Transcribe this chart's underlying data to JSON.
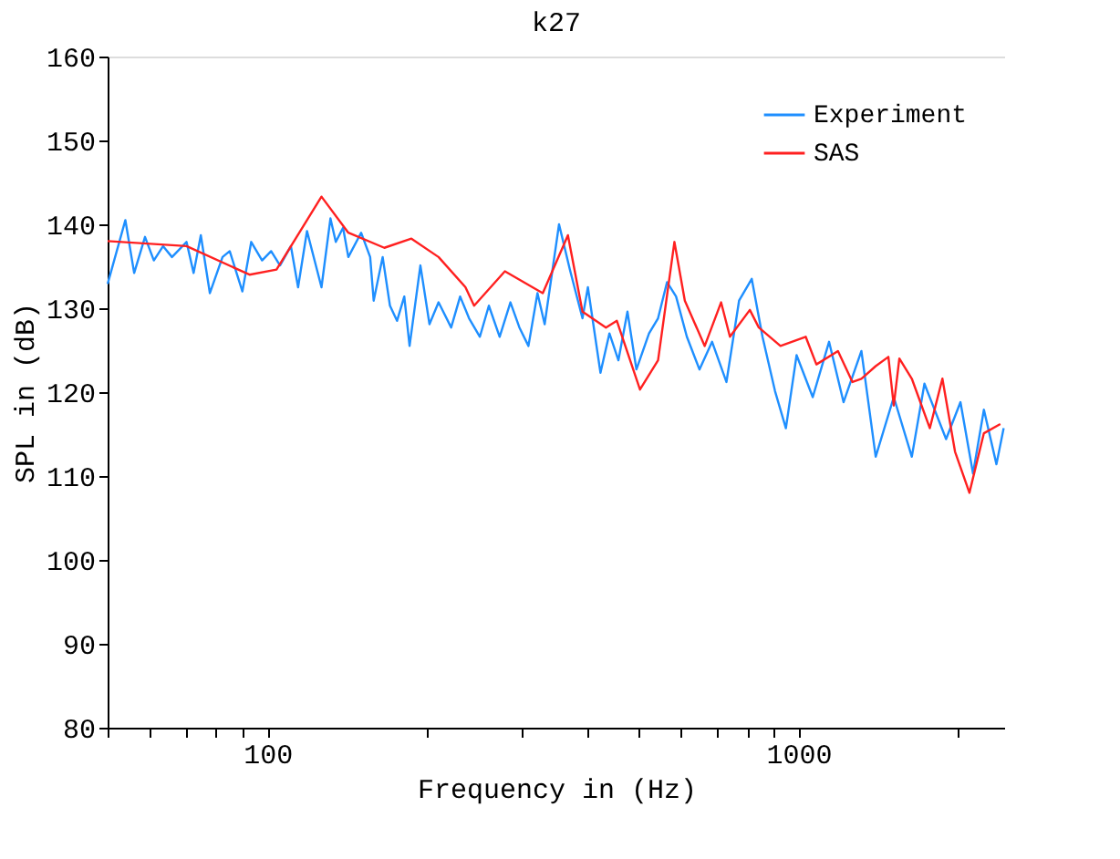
{
  "chart_data": {
    "type": "line",
    "title": "k27",
    "xlabel": "Frequency in (Hz)",
    "ylabel": "SPL in (dB)",
    "log": "x",
    "xlim": [
      50,
      2450
    ],
    "ylim": [
      80,
      160
    ],
    "xticks": [
      {
        "value": 50,
        "label": null
      },
      {
        "value": 60,
        "label": null
      },
      {
        "value": 70,
        "label": null
      },
      {
        "value": 80,
        "label": null
      },
      {
        "value": 90,
        "label": null
      },
      100,
      {
        "value": 200,
        "label": null
      },
      {
        "value": 300,
        "label": null
      },
      {
        "value": 400,
        "label": null
      },
      {
        "value": 500,
        "label": null
      },
      {
        "value": 600,
        "label": null
      },
      {
        "value": 700,
        "label": null
      },
      {
        "value": 800,
        "label": null
      },
      {
        "value": 900,
        "label": null
      },
      1000,
      {
        "value": 2000,
        "label": null
      }
    ],
    "yticks": [
      80,
      90,
      100,
      110,
      120,
      130,
      140,
      150,
      160
    ],
    "grid": false,
    "legend": "top right",
    "marker": "none",
    "line_style": "solid",
    "series": [
      {
        "name": "Experiment",
        "color": "#1f8fff",
        "x": [
          50,
          54,
          56.1,
          58.8,
          61.1,
          63.6,
          66.1,
          70.4,
          72.6,
          74.9,
          77.9,
          82.3,
          84.9,
          89.7,
          93.2,
          97.7,
          101.6,
          105.6,
          110.7,
          114.2,
          118.7,
          126.4,
          131.4,
          134.5,
          138.8,
          142,
          150.1,
          156.1,
          158.5,
          164.8,
          170.1,
          175.4,
          181,
          185.2,
          194.1,
          201.9,
          210,
          221.8,
          230.6,
          239.7,
          251.2,
          261.2,
          273.7,
          286.8,
          298.2,
          310.1,
          322.5,
          332.7,
          354.1,
          371.2,
          392,
          401.3,
          423.8,
          440.6,
          458.1,
          476.4,
          495.3,
          523.1,
          544,
          565.6,
          588.2,
          616.4,
          651,
          687.7,
          731.8,
          773,
          816.6,
          855.6,
          903.6,
          947,
          992,
          1064,
          1142,
          1216,
          1314,
          1398,
          1512,
          1635,
          1727,
          1897,
          2019,
          2132,
          2235,
          2360,
          2435
        ],
        "values": [
          132.9,
          140.5,
          134.2,
          138.5,
          135.7,
          137.4,
          136.1,
          137.9,
          134.2,
          138.7,
          131.8,
          136.1,
          136.8,
          132,
          137.9,
          135.7,
          136.8,
          135.1,
          137.4,
          132.5,
          139.2,
          132.5,
          140.7,
          137.9,
          139.6,
          136.1,
          139,
          136.1,
          130.9,
          136.1,
          130.3,
          128.5,
          131.4,
          125.5,
          135.1,
          128.1,
          130.7,
          127.7,
          131.4,
          128.8,
          126.6,
          130.3,
          126.6,
          130.7,
          127.7,
          125.5,
          131.8,
          128.1,
          140,
          134.6,
          128.8,
          132.5,
          122.3,
          127,
          123.8,
          129.6,
          122.7,
          127,
          128.8,
          133.1,
          131.4,
          126.6,
          122.7,
          126,
          121.2,
          130.9,
          133.5,
          126.6,
          120.1,
          115.7,
          124.4,
          119.4,
          126,
          118.8,
          124.9,
          112.3,
          119.4,
          112.3,
          121,
          114.4,
          118.8,
          110.3,
          117.9,
          111.4,
          115.7
        ]
      },
      {
        "name": "SAS",
        "color": "#ff2020",
        "x": [
          50,
          70.4,
          92.5,
          104,
          126.4,
          142,
          166,
          186.7,
          210,
          236,
          245,
          280,
          330,
          368,
          392,
          434,
          455,
          503,
          544,
          584,
          611,
          666,
          715,
          743,
          810,
          842,
          925,
          1032,
          1081,
          1187,
          1264,
          1314,
          1398,
          1477,
          1512,
          1549,
          1635,
          1768,
          1867,
          1972,
          2099,
          2235,
          2400
        ],
        "values": [
          138,
          137.4,
          134,
          134.6,
          143.3,
          139,
          137.2,
          138.3,
          136.1,
          132.5,
          130.3,
          134.4,
          131.8,
          138.7,
          129.6,
          127.7,
          128.5,
          120.3,
          123.8,
          137.9,
          130.9,
          125.5,
          130.7,
          126.6,
          129.8,
          127.7,
          125.5,
          126.6,
          123.3,
          124.9,
          121.2,
          121.6,
          123.1,
          124.2,
          118.4,
          124,
          121.6,
          115.7,
          121.6,
          112.9,
          108,
          115.1,
          116.2
        ]
      }
    ]
  }
}
